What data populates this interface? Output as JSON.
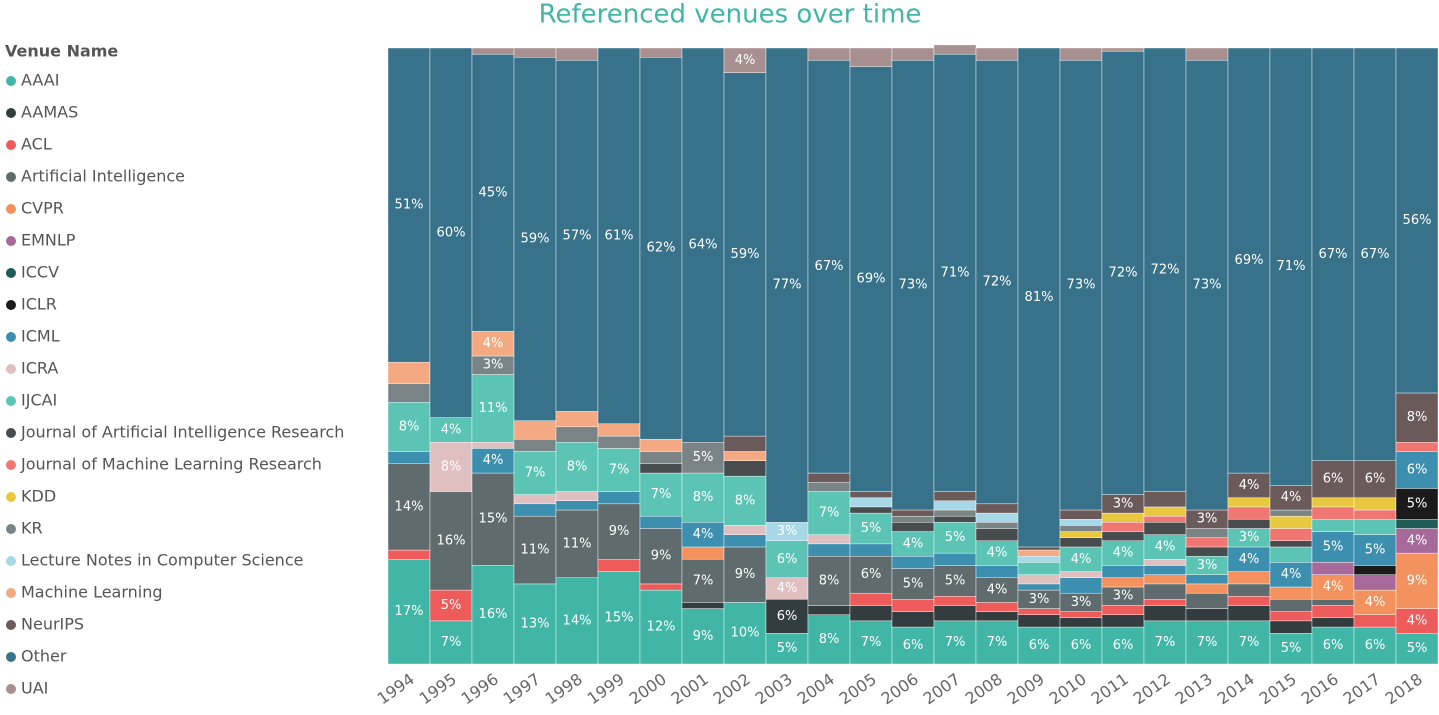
{
  "chart_data": {
    "type": "stacked_bar_100",
    "title": "Referenced venues over time",
    "legend_title": "Venue Name",
    "categories": [
      "1994",
      "1995",
      "1996",
      "1997",
      "1998",
      "1999",
      "2000",
      "2001",
      "2002",
      "2003",
      "2004",
      "2005",
      "2006",
      "2007",
      "2008",
      "2009",
      "2010",
      "2011",
      "2012",
      "2013",
      "2014",
      "2015",
      "2016",
      "2017",
      "2018"
    ],
    "ylim": [
      0,
      100
    ],
    "legend_position": "left",
    "series": [
      {
        "name": "AAAI",
        "color": "#41b6a6",
        "values": [
          17,
          7,
          16,
          13,
          14,
          15,
          12,
          9,
          10,
          5,
          8,
          7,
          6,
          7,
          7,
          6,
          6,
          6,
          7,
          7,
          7,
          5,
          6,
          6,
          5
        ],
        "value_labels": [
          "17%",
          "7%",
          "16%",
          "13%",
          "14%",
          "15%",
          "12%",
          "9%",
          "10%",
          "5%",
          "8%",
          "7%",
          "6%",
          "7%",
          "7%",
          "6%",
          "6%",
          "6%",
          "7%",
          "7%",
          "7%",
          "5%",
          "6%",
          "6%",
          "5%"
        ]
      },
      {
        "name": "AAMAS",
        "color": "#333d3f",
        "values": [
          0,
          0,
          0,
          0,
          0,
          0,
          0,
          1,
          0,
          5.5,
          1.5,
          2.5,
          2.5,
          2.5,
          1.5,
          2,
          1.5,
          2,
          2.5,
          2,
          2.5,
          2,
          1.5,
          0,
          0
        ],
        "value_labels": [
          null,
          null,
          null,
          null,
          null,
          null,
          null,
          null,
          null,
          "6%",
          null,
          null,
          null,
          null,
          null,
          null,
          null,
          null,
          null,
          null,
          null,
          null,
          null,
          null,
          null
        ]
      },
      {
        "name": "ACL",
        "color": "#ee5b5b",
        "values": [
          1.5,
          5,
          0,
          0,
          0,
          2,
          1,
          0,
          0,
          0,
          0,
          2,
          2,
          1.5,
          1.5,
          1,
          1,
          1.5,
          1,
          0,
          1.5,
          1.5,
          2,
          2,
          4
        ],
        "value_labels": [
          null,
          "5%",
          null,
          null,
          null,
          null,
          null,
          null,
          null,
          null,
          null,
          null,
          null,
          null,
          null,
          null,
          null,
          null,
          null,
          null,
          null,
          null,
          null,
          null,
          "4%"
        ]
      },
      {
        "name": "Artificial Intelligence",
        "color": "#5f6b6d",
        "values": [
          14,
          16,
          15,
          11,
          11,
          9,
          9,
          7,
          9,
          0,
          8,
          6,
          5,
          5,
          4,
          3,
          3,
          3,
          2.5,
          2.5,
          2,
          2,
          1,
          0,
          0
        ],
        "value_labels": [
          "14%",
          "16%",
          "15%",
          "11%",
          "11%",
          "9%",
          "9%",
          "7%",
          "9%",
          null,
          "8%",
          "6%",
          "5%",
          "5%",
          "4%",
          "3%",
          "3%",
          "3%",
          null,
          null,
          null,
          null,
          null,
          null,
          null
        ]
      },
      {
        "name": "CVPR",
        "color": "#f4925f",
        "values": [
          0,
          0,
          0,
          0,
          0,
          0,
          0,
          2,
          0,
          0,
          0,
          0,
          0,
          0,
          0,
          0,
          0,
          1.5,
          1.5,
          1.5,
          2,
          2,
          4,
          4,
          9
        ],
        "value_labels": [
          null,
          null,
          null,
          null,
          null,
          null,
          null,
          null,
          null,
          null,
          null,
          null,
          null,
          null,
          null,
          null,
          null,
          null,
          null,
          null,
          null,
          null,
          "4%",
          "4%",
          "9%"
        ]
      },
      {
        "name": "EMNLP",
        "color": "#a66999",
        "values": [
          0,
          0,
          0,
          0,
          0,
          0,
          0,
          0,
          0,
          0,
          0,
          0,
          0,
          0,
          0,
          0,
          0,
          0,
          0,
          0,
          0,
          0,
          2,
          2.5,
          4
        ],
        "value_labels": [
          null,
          null,
          null,
          null,
          null,
          null,
          null,
          null,
          null,
          null,
          null,
          null,
          null,
          null,
          null,
          null,
          null,
          null,
          null,
          null,
          null,
          null,
          null,
          null,
          "4%"
        ]
      },
      {
        "name": "ICCV",
        "color": "#1f5c55",
        "values": [
          0,
          0,
          0,
          0,
          0,
          0,
          0,
          0,
          0,
          0,
          0,
          0,
          0,
          0,
          0,
          0,
          0,
          0,
          0,
          0,
          0,
          0,
          0,
          0,
          1.5
        ]
      },
      {
        "name": "ICLR",
        "color": "#1a1a1a",
        "values": [
          0,
          0,
          0,
          0,
          0,
          0,
          0,
          0,
          0,
          0,
          0,
          0,
          0,
          0,
          0,
          0,
          0,
          0,
          0,
          0,
          0,
          0,
          0,
          1.5,
          5
        ],
        "value_labels": [
          null,
          null,
          null,
          null,
          null,
          null,
          null,
          null,
          null,
          null,
          null,
          null,
          null,
          null,
          null,
          null,
          null,
          null,
          null,
          null,
          null,
          null,
          null,
          null,
          "5%"
        ]
      },
      {
        "name": "ICML",
        "color": "#3d8fb0",
        "values": [
          2,
          0,
          4,
          2,
          1.5,
          2,
          2,
          4,
          2,
          0,
          2,
          2,
          2,
          2,
          2,
          1,
          2.5,
          2,
          1.5,
          1.5,
          4,
          4,
          5,
          5,
          6
        ],
        "value_labels": [
          null,
          null,
          "4%",
          null,
          null,
          null,
          null,
          "4%",
          null,
          null,
          null,
          null,
          null,
          null,
          null,
          null,
          null,
          null,
          null,
          null,
          "4%",
          "4%",
          "5%",
          "5%",
          "6%"
        ]
      },
      {
        "name": "ICRA",
        "color": "#dfbfbf",
        "values": [
          0,
          8,
          1,
          1.5,
          1.5,
          0,
          0,
          0,
          1.5,
          3.5,
          1.5,
          0,
          0,
          0,
          0,
          1.5,
          1,
          0,
          1,
          0,
          0,
          0,
          0,
          0,
          0
        ],
        "value_labels": [
          null,
          "8%",
          null,
          null,
          null,
          null,
          null,
          null,
          null,
          "4%",
          null,
          null,
          null,
          null,
          null,
          null,
          null,
          null,
          null,
          null,
          null,
          null,
          null,
          null,
          null
        ]
      },
      {
        "name": "IJCAI",
        "color": "#5bc4b4",
        "values": [
          8,
          4,
          11,
          7,
          8,
          7,
          7,
          8,
          8,
          6,
          7,
          5,
          4,
          5,
          4,
          2,
          4,
          4,
          4,
          3,
          3,
          2.5,
          2,
          2.5,
          0
        ],
        "value_labels": [
          "8%",
          "4%",
          "11%",
          "7%",
          "8%",
          "7%",
          "7%",
          "8%",
          "8%",
          "6%",
          "7%",
          "5%",
          "4%",
          "5%",
          "4%",
          null,
          "4%",
          "4%",
          "4%",
          "3%",
          "3%",
          null,
          null,
          null,
          null
        ]
      },
      {
        "name": "Journal of Artificial Intelligence Research",
        "color": "#474d4f",
        "values": [
          0,
          0,
          0,
          0,
          0,
          0,
          1.5,
          0,
          2.5,
          0,
          0,
          1,
          1.5,
          1,
          2,
          0,
          1.5,
          1.5,
          2,
          1.5,
          1.5,
          1,
          0,
          0,
          0
        ]
      },
      {
        "name": "Journal of Machine Learning Research",
        "color": "#f07672",
        "values": [
          0,
          0,
          0,
          0,
          0,
          0,
          0,
          0,
          0,
          0,
          0,
          0,
          0,
          0,
          0,
          0,
          0,
          1.5,
          1,
          1.5,
          2,
          2,
          2,
          1.5,
          1.5
        ]
      },
      {
        "name": "KDD",
        "color": "#e8c83e",
        "values": [
          0,
          0,
          0,
          0,
          0,
          0,
          0,
          0,
          0,
          0,
          0,
          0,
          0,
          0,
          0,
          0,
          1,
          1.5,
          1.5,
          0,
          1.5,
          2,
          1.5,
          2,
          0
        ]
      },
      {
        "name": "KR",
        "color": "#7a8486",
        "values": [
          3,
          0,
          3,
          2,
          2.5,
          2,
          2,
          5,
          0,
          0,
          1.5,
          0,
          1,
          1,
          1,
          0,
          1,
          0,
          0,
          1.5,
          0,
          1,
          0,
          0,
          0
        ],
        "value_labels": [
          null,
          null,
          "3%",
          null,
          null,
          null,
          null,
          "5%",
          null,
          null,
          null,
          null,
          null,
          null,
          null,
          null,
          null,
          null,
          null,
          null,
          null,
          null,
          null,
          null,
          null
        ]
      },
      {
        "name": "Lecture Notes in Computer Science",
        "color": "#a6d8e8",
        "values": [
          0,
          0,
          0,
          0,
          0,
          0,
          0,
          0,
          0,
          3,
          0,
          1.5,
          0,
          1.5,
          1.5,
          1,
          1,
          0,
          0,
          0,
          0,
          0,
          0,
          0,
          0
        ],
        "value_labels": [
          null,
          null,
          null,
          null,
          null,
          null,
          null,
          null,
          null,
          "3%",
          null,
          null,
          null,
          null,
          null,
          null,
          null,
          null,
          null,
          null,
          null,
          null,
          null,
          null,
          null
        ]
      },
      {
        "name": "Machine Learning",
        "color": "#f5a983",
        "values": [
          3.5,
          0,
          4,
          3,
          2.5,
          2,
          2,
          0,
          1.5,
          0,
          0,
          0,
          0,
          0,
          0,
          1,
          0,
          0,
          0,
          0,
          0,
          0,
          0,
          0,
          0
        ],
        "value_labels": [
          null,
          null,
          "4%",
          null,
          null,
          null,
          null,
          null,
          null,
          null,
          null,
          null,
          null,
          null,
          null,
          null,
          null,
          null,
          null,
          null,
          null,
          null,
          null,
          null,
          null
        ]
      },
      {
        "name": "NeurIPS",
        "color": "#6b5a5a",
        "values": [
          0,
          0,
          0,
          0,
          0,
          0,
          0,
          0,
          2.5,
          0,
          1.5,
          1,
          1,
          1.5,
          1.5,
          0.5,
          1.5,
          3,
          2.5,
          3,
          4,
          4,
          6,
          6,
          8
        ],
        "value_labels": [
          null,
          null,
          null,
          null,
          null,
          null,
          null,
          null,
          null,
          null,
          null,
          null,
          null,
          null,
          null,
          null,
          null,
          "3%",
          null,
          "3%",
          "4%",
          "4%",
          "6%",
          "6%",
          "8%"
        ]
      },
      {
        "name": "Other",
        "color": "#37728a",
        "values": [
          51,
          60,
          45,
          59,
          57,
          61,
          62,
          64,
          59,
          77,
          67,
          69,
          73,
          71,
          72,
          81,
          73,
          72,
          72,
          73,
          69,
          71,
          67,
          67,
          56
        ],
        "value_labels": [
          "51%",
          "60%",
          "45%",
          "59%",
          "57%",
          "61%",
          "62%",
          "64%",
          "59%",
          "77%",
          "67%",
          "69%",
          "73%",
          "71%",
          "72%",
          "81%",
          "73%",
          "72%",
          "72%",
          "73%",
          "69%",
          "71%",
          "67%",
          "67%",
          "56%"
        ]
      },
      {
        "name": "UAI",
        "color": "#a89090",
        "values": [
          0,
          0,
          1,
          1.5,
          2,
          0,
          1.5,
          0,
          4,
          0,
          2,
          3,
          2,
          1.5,
          2,
          0,
          2,
          0.5,
          0,
          2,
          0,
          0,
          0,
          0,
          0
        ],
        "value_labels": [
          null,
          null,
          null,
          null,
          null,
          null,
          null,
          null,
          "4%",
          null,
          null,
          null,
          null,
          null,
          null,
          null,
          null,
          null,
          null,
          null,
          null,
          null,
          null,
          null,
          null
        ]
      }
    ]
  }
}
